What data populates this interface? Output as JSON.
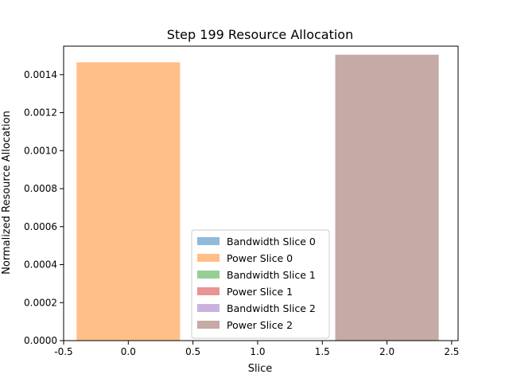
{
  "chart_data": {
    "type": "bar",
    "title": "Step 199 Resource Allocation",
    "xlabel": "Slice",
    "ylabel": "Normalized Resource Allocation",
    "xlim": [
      -0.5,
      2.55
    ],
    "ylim": [
      0,
      0.00155
    ],
    "xticks": [
      "-0.5",
      "0.0",
      "0.5",
      "1.0",
      "1.5",
      "2.0",
      "2.5"
    ],
    "yticks": [
      "0.0000",
      "0.0002",
      "0.0004",
      "0.0006",
      "0.0008",
      "0.0010",
      "0.0012",
      "0.0014"
    ],
    "bar_width": 0.8,
    "grid": false,
    "legend_position": "lower-center",
    "series": [
      {
        "name": "Bandwidth Slice 0",
        "x": 0,
        "value": 0.0,
        "color": "#1f77b4"
      },
      {
        "name": "Power Slice 0",
        "x": 0,
        "value": 0.001465,
        "color": "#ff7f0e"
      },
      {
        "name": "Bandwidth Slice 1",
        "x": 1,
        "value": 0.0,
        "color": "#2ca02c"
      },
      {
        "name": "Power Slice 1",
        "x": 1,
        "value": 0.0,
        "color": "#d62728"
      },
      {
        "name": "Bandwidth Slice 2",
        "x": 2,
        "value": 0.0,
        "color": "#9467bd"
      },
      {
        "name": "Power Slice 2",
        "x": 2,
        "value": 0.001505,
        "color": "#8c564b"
      }
    ],
    "bar_alpha": 0.5
  }
}
